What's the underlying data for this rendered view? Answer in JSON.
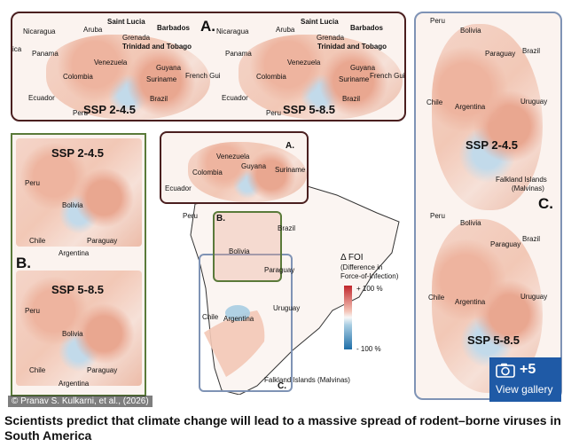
{
  "figure": {
    "panel_a_top": {
      "letter": "A.",
      "left_ssp": "SSP 2-4.5",
      "right_ssp": "SSP 5-8.5",
      "left_labels": [
        "Nicaragua",
        "ica",
        "Panama",
        "Aruba",
        "Saint Lucia",
        "Barbados",
        "Grenada",
        "Trinidad and Tobago",
        "Venezuela",
        "Colombia",
        "Guyana",
        "Suriname",
        "French Gui",
        "Ecuador",
        "Peru",
        "Brazil"
      ],
      "right_labels": [
        "Nicaragua",
        "Panama",
        "Aruba",
        "Saint Lucia",
        "Barbados",
        "Grenada",
        "Trinidad and Tobago",
        "Venezuela",
        "Colombia",
        "Guyana",
        "Suriname",
        "French Gui",
        "Ecuador",
        "Peru",
        "Brazil"
      ]
    },
    "panel_b_left": {
      "letter": "B.",
      "top_ssp": "SSP 2-4.5",
      "bottom_ssp": "SSP 5-8.5",
      "top_labels": [
        "Peru",
        "Bolivia",
        "Chile",
        "Paraguay",
        "Argentina"
      ],
      "bottom_labels": [
        "Peru",
        "Bolivia",
        "Chile",
        "Paraguay",
        "Argentina"
      ]
    },
    "center_map": {
      "inset_a_letter": "A.",
      "inset_a_labels": [
        "Colombia",
        "Venezuela",
        "Guyana",
        "Suriname",
        "Ecuador"
      ],
      "inset_b_letter": "B.",
      "inset_c_letter": "C.",
      "labels": [
        "Peru",
        "Brazil",
        "Bolivia",
        "Paraguay",
        "Chile",
        "Argentina",
        "Uruguay",
        "Falkland Islands (Malvinas)"
      ]
    },
    "legend": {
      "title": "Δ FOI",
      "subtitle_1": "(Difference in",
      "subtitle_2": "Force-of-Infection)",
      "max_label": "+ 100 %",
      "min_label": "- 100 %"
    },
    "panel_c_right": {
      "letter": "C.",
      "top_ssp": "SSP 2-4.5",
      "bottom_ssp": "SSP 5-8.5",
      "top_labels": [
        "Peru",
        "Bolivia",
        "Paraguay",
        "Brazil",
        "Chile",
        "Argentina",
        "Uruguay",
        "Falkland Islands",
        "(Malvinas)"
      ],
      "bottom_labels": [
        "Peru",
        "Bolivia",
        "Paraguay",
        "Brazil",
        "Chile",
        "Argentina",
        "Uruguay"
      ]
    },
    "colors": {
      "red": "#c0262c",
      "blue": "#1f6ea8",
      "panel_a_border": "#4a1f1f",
      "panel_b_border": "#5a7a3a",
      "panel_c_border": "#7f93b5"
    }
  },
  "credit": "© Pranav S. Kulkarni, et al., (2026)",
  "gallery": {
    "count": "+5",
    "label": "View gallery",
    "icon": "camera-icon"
  },
  "caption": "Scientists predict that climate change will lead to a massive spread of rodent–borne viruses in South America"
}
